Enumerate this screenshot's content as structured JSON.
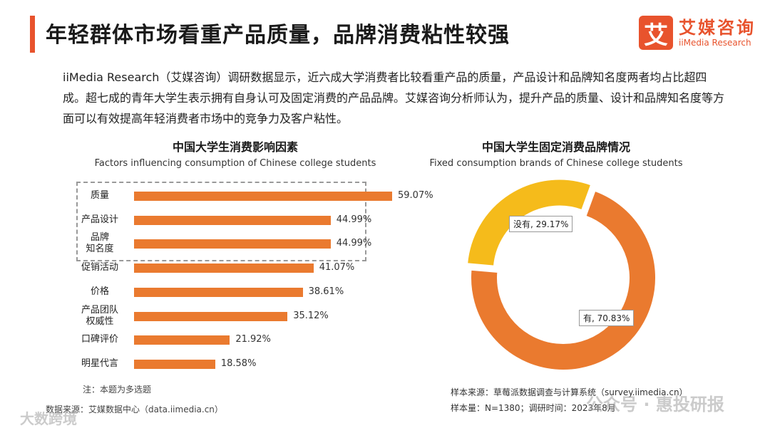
{
  "header": {
    "title": "年轻群体市场看重产品质量，品牌消费粘性较强",
    "brand_mark": "艾",
    "brand_cn": "艾媒咨询",
    "brand_en": "iiMedia Research",
    "accent": "#e8532d"
  },
  "intro": "iiMedia Research（艾媒咨询）调研数据显示，近六成大学消费者比较看重产品的质量，产品设计和品牌知名度两者均占比超四成。超七成的青年大学生表示拥有自身认可及固定消费的产品品牌。艾媒咨询分析师认为，提升产品的质量、设计和品牌知名度等方面可以有效提高年轻消费者市场中的竞争力及客户粘性。",
  "chart_data": [
    {
      "type": "bar",
      "orientation": "horizontal",
      "title": "中国大学生消费影响因素",
      "subtitle": "Factors influencing consumption of Chinese  college students",
      "categories": [
        "质量",
        "产品设计",
        "品牌\n知名度",
        "促销活动",
        "价格",
        "产品团队\n权威性",
        "口碑评价",
        "明星代言"
      ],
      "values": [
        59.07,
        44.99,
        44.99,
        41.07,
        38.61,
        35.12,
        21.92,
        18.58
      ],
      "value_labels": [
        "59.07%",
        "44.99%",
        "44.99%",
        "41.07%",
        "38.61%",
        "35.12%",
        "21.92%",
        "18.58%"
      ],
      "unit": "%",
      "highlighted_categories": [
        "质量",
        "产品设计",
        "品牌\n知名度"
      ],
      "color": "#ea7a2f",
      "note": "注：本题为多选题",
      "source": "数据来源：艾媒数据中心（data.iimedia.cn）"
    },
    {
      "type": "pie",
      "donut": true,
      "title": "中国大学生固定消费品牌情况",
      "subtitle": "Fixed consumption brands of Chinese college students",
      "slices": [
        {
          "label": "有",
          "value": 70.83,
          "display": "有, 70.83%",
          "color": "#ea7a2f"
        },
        {
          "label": "没有",
          "value": 29.17,
          "display": "没有, 29.17%",
          "color": "#f5bb1b"
        }
      ],
      "source_lines": [
        "样本来源：草莓派数据调查与计算系统（survey.iimedia.cn）",
        "样本量：N=1380；调研时间：2023年8月"
      ]
    }
  ],
  "watermarks": {
    "left": "大数跨境",
    "right": "公众号 · 惠投研报"
  }
}
